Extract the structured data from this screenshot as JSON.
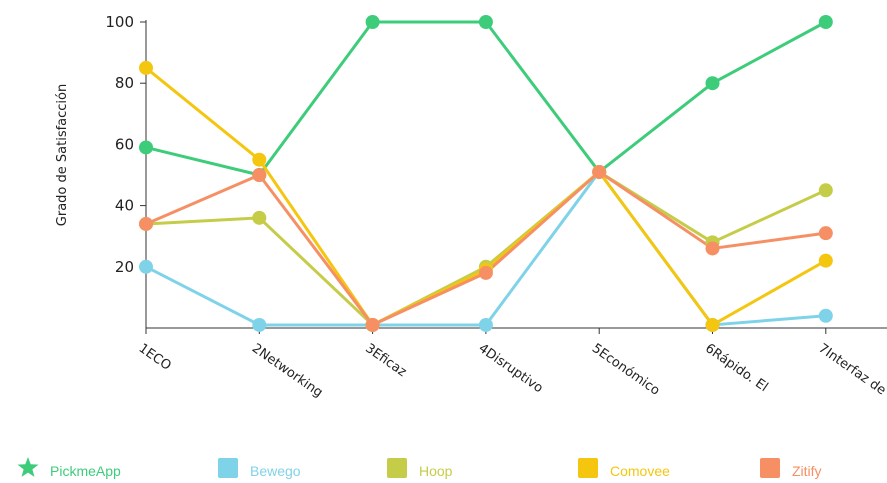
{
  "chart_data": {
    "type": "line",
    "title": "",
    "xlabel": "",
    "ylabel": "Grado de Satisfacción",
    "ylim": [
      0,
      100
    ],
    "yticks": [
      20,
      40,
      60,
      80,
      100
    ],
    "categories": [
      "1ECO",
      "2Networking",
      "3Eficaz",
      "4Disruptivo",
      "5Económico",
      "6Rápido. El",
      "7Interfaz de"
    ],
    "legend_position": "bottom",
    "grid": false,
    "series": [
      {
        "name": "PickmeApp",
        "color": "#3dcc7a",
        "marker": "star",
        "values": [
          59,
          50,
          100,
          100,
          51,
          80,
          100
        ]
      },
      {
        "name": "Bewego",
        "color": "#7fd3e8",
        "marker": "square",
        "values": [
          20,
          1,
          1,
          1,
          51,
          1,
          4
        ]
      },
      {
        "name": "Hoop",
        "color": "#c5cc48",
        "marker": "square",
        "values": [
          34,
          36,
          1,
          20,
          51,
          28,
          45
        ]
      },
      {
        "name": "Comovee",
        "color": "#f4c60f",
        "marker": "square",
        "values": [
          85,
          55,
          1,
          19,
          51,
          1,
          22
        ]
      },
      {
        "name": "Zitify",
        "color": "#f68f64",
        "marker": "square",
        "values": [
          34,
          50,
          1,
          18,
          51,
          26,
          31
        ]
      }
    ]
  }
}
